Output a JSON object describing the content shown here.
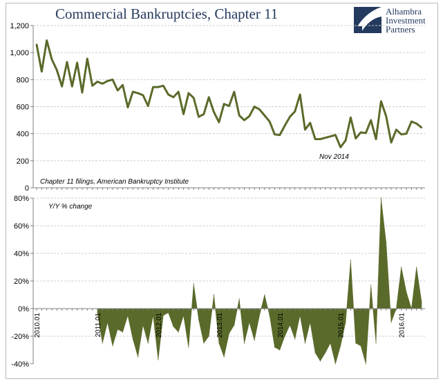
{
  "title": "Commercial Bankruptcies, Chapter 11",
  "logo": {
    "lines": [
      "Alhambra",
      "Investment",
      "Partners"
    ],
    "colors": {
      "navy": "#243a5e",
      "white": "#ffffff"
    }
  },
  "colors": {
    "series": "#5a6a2a",
    "area": "#5a6a2a",
    "grid": "#cccccc",
    "axis": "#7f7f7f",
    "text": "#000000"
  },
  "chart_data": [
    {
      "type": "line",
      "annotation_source": "Chapter 11 filings, American Bankruptcy Institute",
      "annotation_point": "Nov 2014",
      "ylim": [
        0,
        1200
      ],
      "yticks": [
        "0",
        "200",
        "400",
        "600",
        "800",
        "1,000",
        "1,200"
      ],
      "grid": true,
      "series": [
        {
          "values": [
            1060,
            860,
            1090,
            950,
            870,
            750,
            930,
            750,
            925,
            705,
            955,
            755,
            785,
            770,
            790,
            800,
            720,
            760,
            595,
            710,
            700,
            685,
            605,
            745,
            745,
            755,
            690,
            670,
            710,
            545,
            700,
            665,
            525,
            545,
            670,
            560,
            485,
            620,
            605,
            710,
            535,
            500,
            530,
            600,
            580,
            535,
            490,
            395,
            390,
            460,
            525,
            565,
            690,
            430,
            480,
            360,
            360,
            370,
            380,
            390,
            300,
            350,
            520,
            365,
            410,
            405,
            500,
            360,
            640,
            530,
            335,
            430,
            395,
            400,
            490,
            475,
            445
          ]
        }
      ]
    },
    {
      "type": "area",
      "annotation": "Y/Y % change",
      "ylim": [
        -40,
        80
      ],
      "yticks": [
        "-40%",
        "-20%",
        "0%",
        "20%",
        "40%",
        "60%",
        "80%"
      ],
      "x_ticks": [
        {
          "label": "2010.01",
          "index": 0
        },
        {
          "label": "2011.01",
          "index": 12
        },
        {
          "label": "2012.01",
          "index": 24
        },
        {
          "label": "2013.01",
          "index": 36
        },
        {
          "label": "2014.01",
          "index": 48
        },
        {
          "label": "2015.01",
          "index": 60
        },
        {
          "label": "2016.01",
          "index": 72
        }
      ],
      "series": [
        {
          "values": [
            null,
            null,
            null,
            null,
            null,
            null,
            null,
            null,
            null,
            null,
            null,
            null,
            -3,
            -25,
            -10,
            -27,
            -15,
            -17,
            -5,
            -22,
            -35,
            -12,
            -25,
            -5,
            -37,
            -5,
            -3,
            -13,
            -17,
            -5,
            -28,
            18,
            -8,
            -25,
            -20,
            10,
            -25,
            -35,
            -18,
            -12,
            7,
            -25,
            -10,
            -23,
            -5,
            10,
            -5,
            -28,
            -30,
            -20,
            -12,
            -22,
            -5,
            -25,
            -10,
            -32,
            -38,
            -32,
            -25,
            -40,
            -27,
            -10,
            35,
            -25,
            -27,
            -40,
            17,
            -25,
            80,
            48,
            -10,
            0,
            30,
            12,
            0,
            30,
            5
          ]
        }
      ]
    }
  ]
}
